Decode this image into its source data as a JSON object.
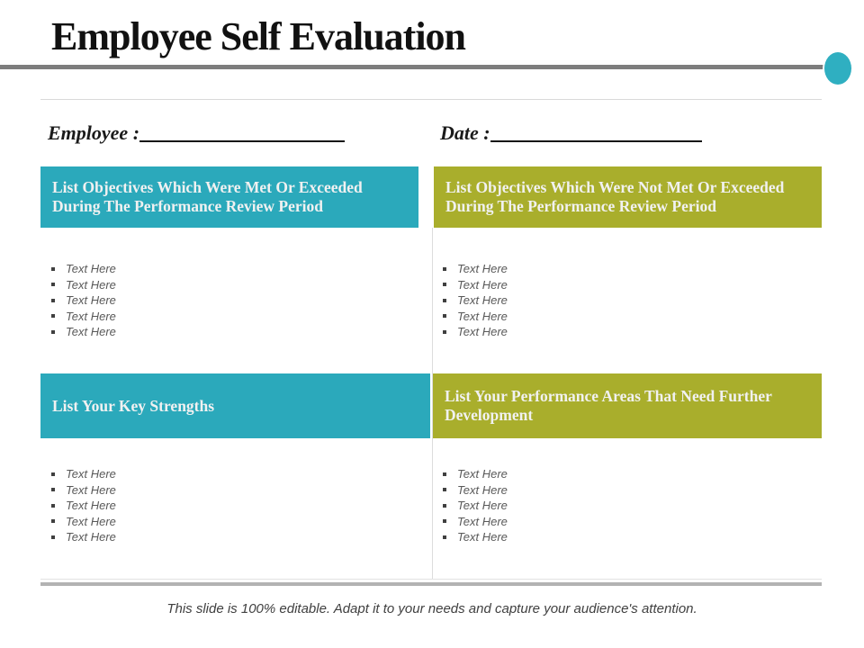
{
  "slide": {
    "title": "Employee Self Evaluation",
    "footer": "This slide is 100% editable. Adapt it to your needs and capture your audience's attention."
  },
  "fields": {
    "employee_label": "Employee :",
    "employee_value": "",
    "date_label": "Date :",
    "date_value": ""
  },
  "theme": {
    "teal": "#2ba9bb",
    "olive": "#a9ae2c",
    "accent_circle": "#2fafc1",
    "rule_gray": "#7d7d7d",
    "header_text": "#f1f1f1",
    "bullet_text": "#595959"
  },
  "sections": [
    {
      "header": "List Objectives Which Were Met Or Exceeded During The Performance Review Period",
      "color": "#2ba9bb",
      "bullets": [
        "Text Here",
        "Text Here",
        "Text Here",
        "Text Here",
        "Text Here"
      ]
    },
    {
      "header": "List Objectives Which Were Not Met Or Exceeded During The Performance Review Period",
      "color": "#a9ae2c",
      "bullets": [
        "Text Here",
        "Text Here",
        "Text Here",
        "Text Here",
        "Text Here"
      ]
    },
    {
      "header": "List Your Key Strengths",
      "color": "#2ba9bb",
      "bullets": [
        "Text Here",
        "Text Here",
        "Text Here",
        "Text Here",
        "Text Here"
      ]
    },
    {
      "header": "List Your Performance Areas That Need Further Development",
      "color": "#a9ae2c",
      "bullets": [
        "Text Here",
        "Text Here",
        "Text Here",
        "Text Here",
        "Text Here"
      ]
    }
  ]
}
